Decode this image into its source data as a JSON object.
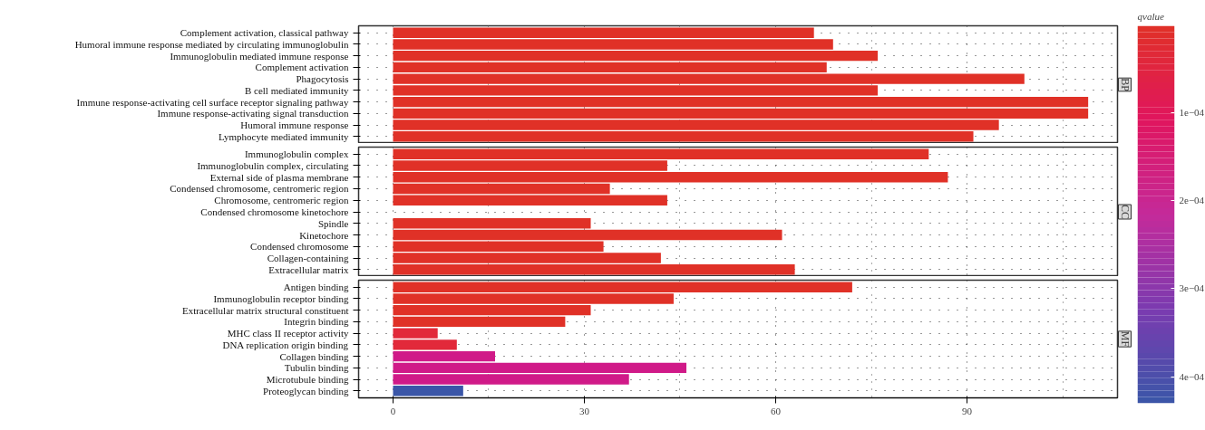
{
  "chart_data": [
    {
      "type": "bar",
      "orientation": "horizontal",
      "title": "BP",
      "clabel": "qvalue",
      "clim": [
        1.5e-06,
        0.00043
      ],
      "cticks": [
        {
          "value": 0.0001,
          "label": "1e−04"
        },
        {
          "value": 0.0002,
          "label": "2e−04"
        },
        {
          "value": 0.0003,
          "label": "3e−04"
        },
        {
          "value": 0.0004,
          "label": "4e−04"
        }
      ],
      "categories": [
        "Complement activation, classical pathway",
        "Humoral immune response mediated by circulating immunoglobulin",
        "Immunoglobulin mediated immune response",
        "Complement activation",
        "Phagocytosis",
        "B cell mediated immunity",
        "Immune response-activating cell surface receptor signaling pathway",
        "Immune response-activating signal transduction",
        "Humoral immune response",
        "Lymphocyte mediated immunity"
      ],
      "values": [
        66,
        69,
        76,
        68,
        99,
        76,
        109,
        109,
        95,
        91
      ],
      "colors": [
        "#e03127",
        "#e03127",
        "#e03127",
        "#e03127",
        "#e03127",
        "#e03127",
        "#e03127",
        "#e03127",
        "#e03127",
        "#e03127"
      ],
      "xlim": [
        -5.4,
        113.6
      ],
      "xticks": [
        0,
        30,
        60,
        90
      ],
      "grid": true,
      "tick_labels": "y"
    },
    {
      "type": "bar",
      "orientation": "horizontal",
      "title": "CC",
      "categories": [
        "Immunoglobulin complex",
        "Immunoglobulin complex, circulating",
        "External side of plasma membrane",
        "Condensed chromosome, centromeric region",
        "Chromosome, centromeric region",
        "Condensed chromosome kinetochore",
        "Spindle",
        "Kinetochore",
        "Condensed chromosome",
        "Collagen-containing",
        "Extracellular matrix"
      ],
      "values": [
        84,
        43,
        87,
        34,
        43,
        null,
        31,
        61,
        33,
        42,
        63
      ],
      "colors": [
        "#e03127",
        "#e03127",
        "#e03127",
        "#e03127",
        "#e03127",
        null,
        "#e03127",
        "#e03127",
        "#e03127",
        "#e03127",
        "#e03127"
      ],
      "xlim": [
        -5.4,
        113.6
      ],
      "xticks": [
        0,
        30,
        60,
        90
      ],
      "grid": true,
      "tick_labels": "y"
    },
    {
      "type": "bar",
      "orientation": "horizontal",
      "title": "MF",
      "categories": [
        "Antigen binding",
        "Immunoglobulin receptor binding",
        "Extracellular matrix structural constituent",
        "Integrin binding",
        "MHC class II receptor activity",
        "DNA replication origin binding",
        "Collagen binding",
        "Tubulin binding",
        "Microtubule binding",
        "Proteoglycan binding"
      ],
      "values": [
        72,
        44,
        31,
        27,
        7,
        10,
        16,
        46,
        37,
        11
      ],
      "colors": [
        "#e03127",
        "#e03127",
        "#e03127",
        "#e03127",
        "#e2293a",
        "#e2293a",
        "#d01a88",
        "#d01a88",
        "#d01a88",
        "#3a56a8"
      ],
      "xlim": [
        -5.4,
        113.6
      ],
      "xticks": [
        0,
        30,
        60,
        90
      ],
      "grid": true
    }
  ]
}
